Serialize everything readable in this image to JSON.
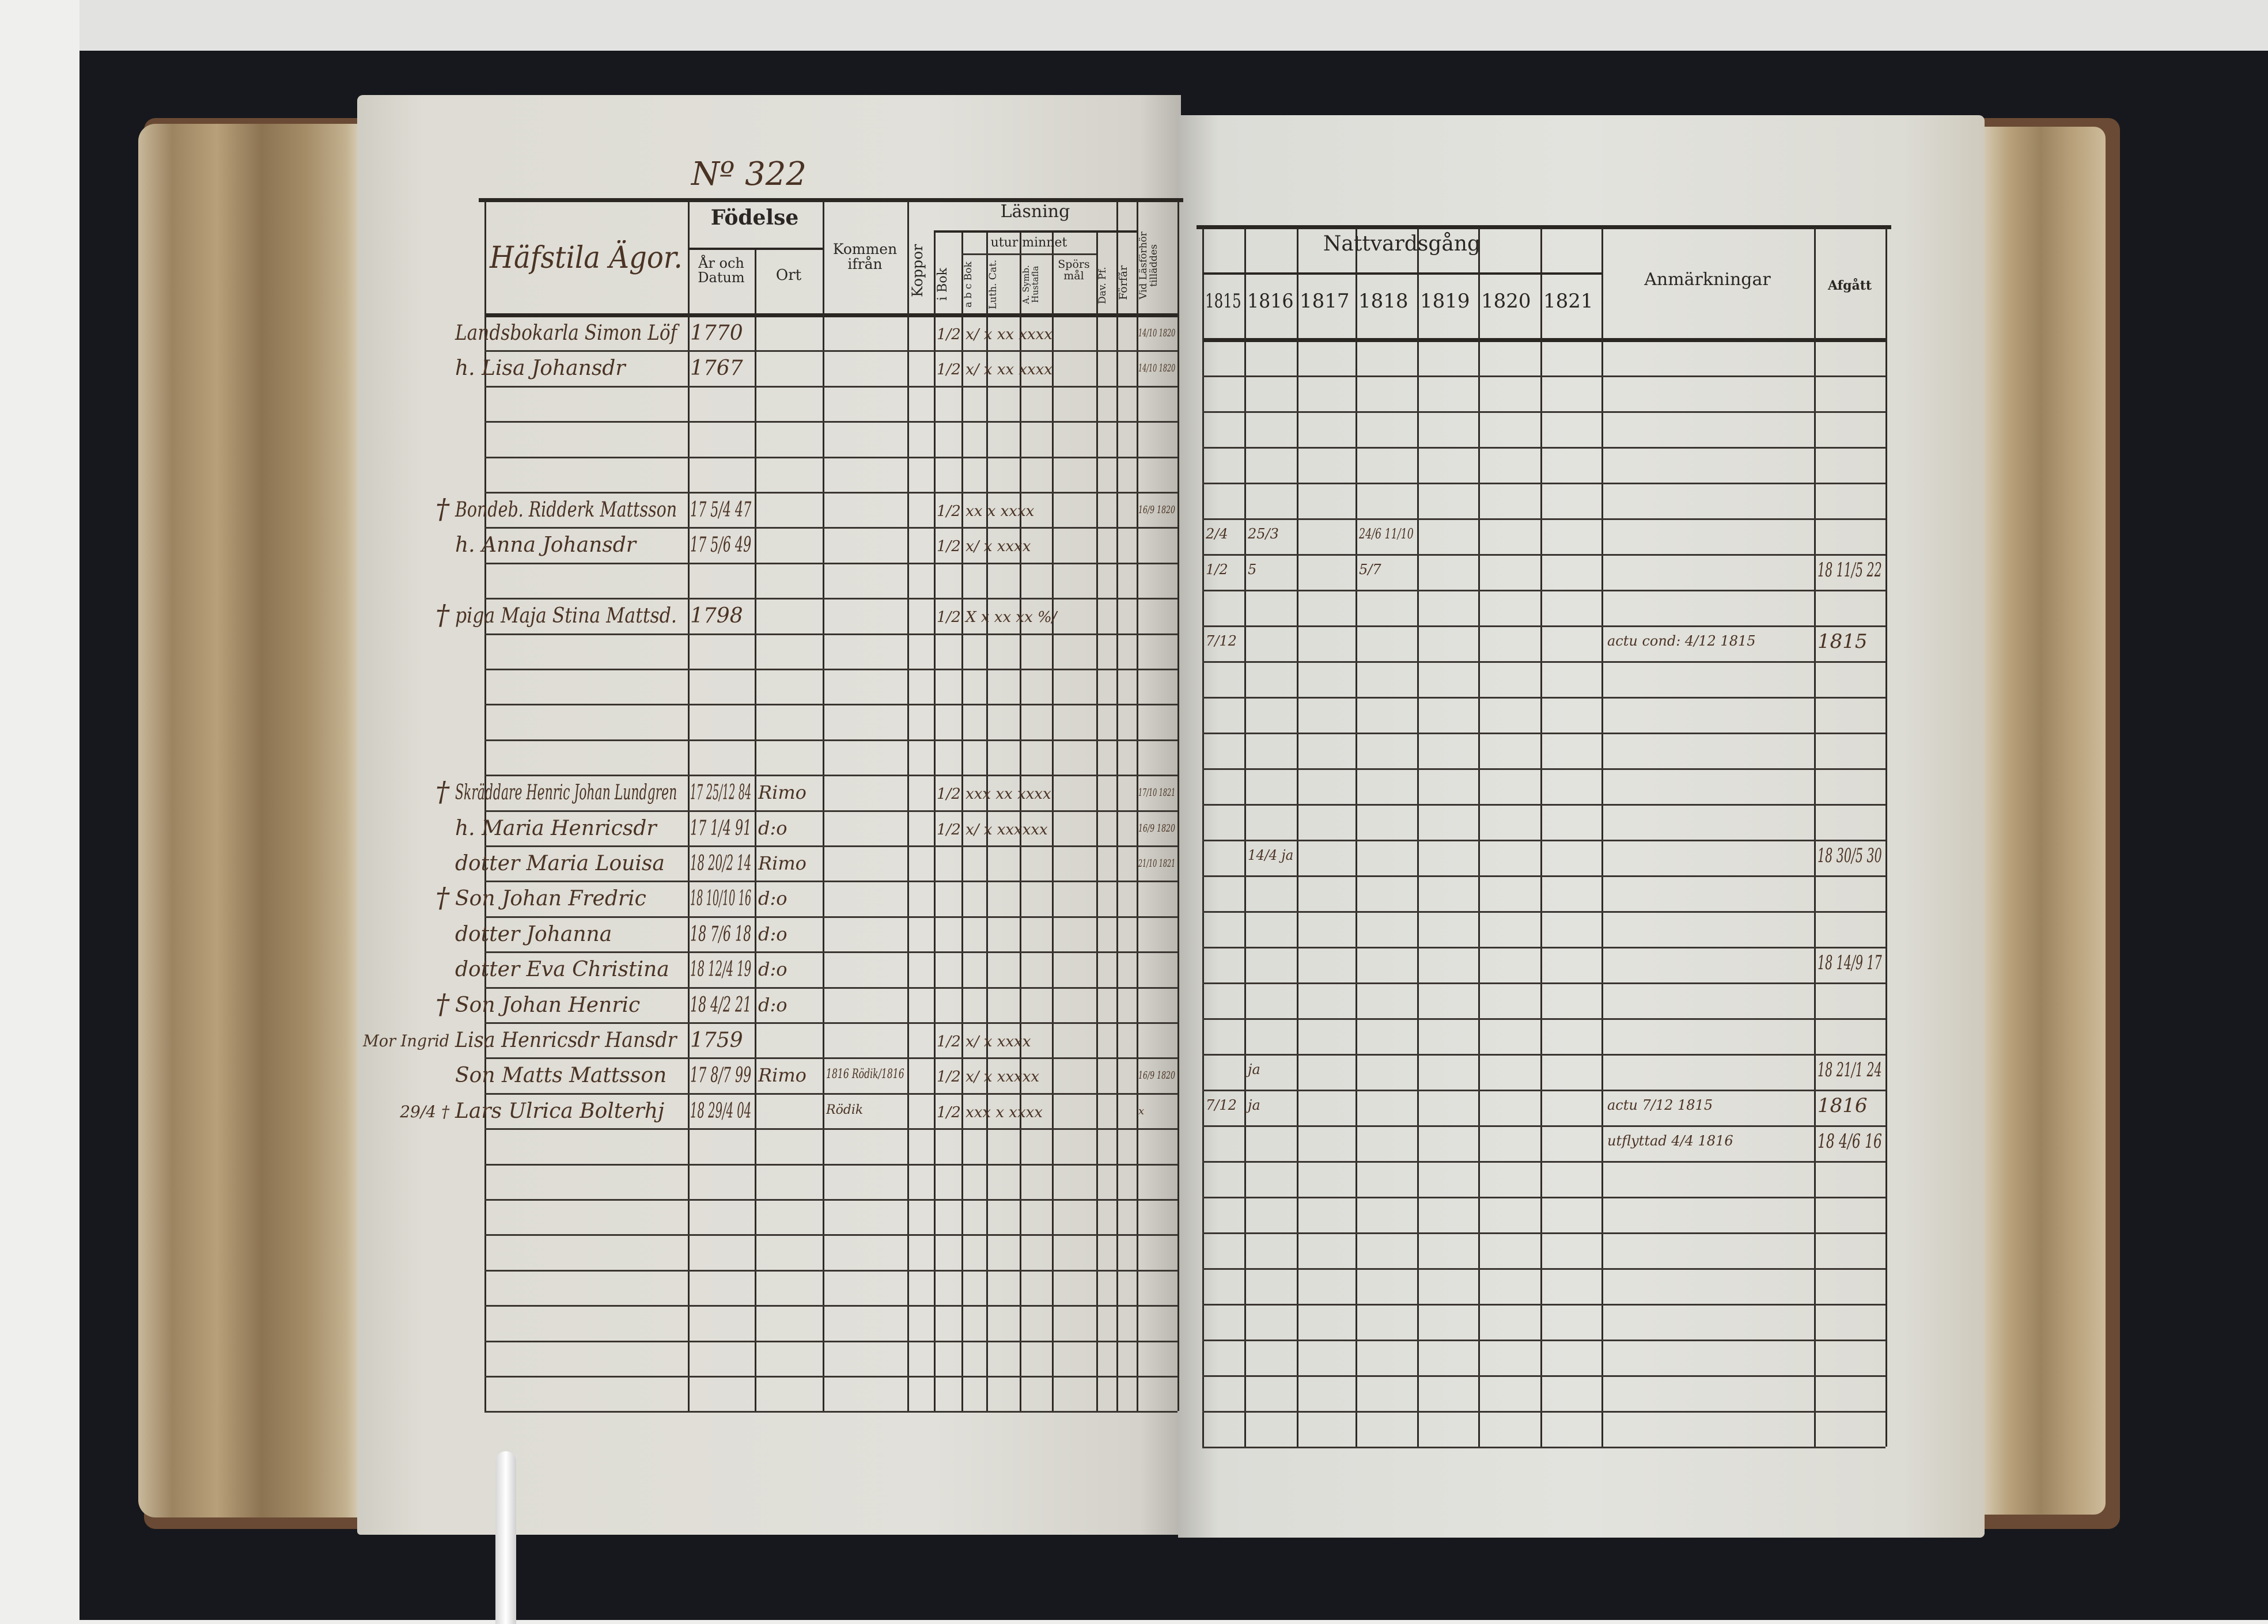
{
  "left_page": {
    "register_no": "Nº 322",
    "village": "Häfstila Ägor.",
    "headers": {
      "fodelse": "Födelse",
      "ar_och_datum": "År och Datum",
      "ort": "Ort",
      "kommen_ifran": "Kommen ifrån",
      "koppor": "Koppor",
      "lasning": "Läsning",
      "utur_minnet": "utur minnet",
      "i_bok": "i Bok",
      "abc_bok": "a b c Bok",
      "luth_cat": "Luth. Cat.",
      "a_symb": "A. Symb. Hustafla",
      "sporsmal": "Spörsmål",
      "dav_pf": "Dav. Pf.",
      "forfar": "Förfår",
      "vid_lasforhor": "Vid Läsförhör tilläddes"
    },
    "rows": [
      {
        "row": 0,
        "mark": "",
        "name": "Landsbokarla Simon Löf",
        "born": "1770",
        "ort": "",
        "reading": "1/2 x/ x  xx xxxx",
        "vid": "14/10 1820"
      },
      {
        "row": 1,
        "mark": "",
        "name": "h. Lisa Johansdr",
        "born": "1767",
        "ort": "",
        "reading": "1/2 x/ x  xx xxxx",
        "vid": "14/10 1820"
      },
      {
        "row": 5,
        "mark": "†",
        "name": "Bondeb. Ridderk Mattsson",
        "born": "17 5/4 47",
        "ort": "",
        "reading": "1/2 xx x  xxxx",
        "vid": "16/9 1820"
      },
      {
        "row": 6,
        "mark": "",
        "name": "h. Anna Johansdr",
        "born": "17 5/6 49",
        "ort": "",
        "reading": "1/2 x/  x xxxx",
        "vid": ""
      },
      {
        "row": 8,
        "mark": "†",
        "name": "piga Maja Stina Mattsd.",
        "born": "1798",
        "ort": "",
        "reading": "1/2 X x  xx xx %/",
        "vid": ""
      },
      {
        "row": 13,
        "mark": "†",
        "name": "Skräddare Henric Johan Lundgren",
        "born": "17 25/12 84",
        "ort": "Rimo",
        "reading": "1/2 xxx xx xxxx",
        "vid": "17/10 1821"
      },
      {
        "row": 14,
        "mark": "",
        "name": "h. Maria Henricsdr",
        "born": "17 1/4 91",
        "ort": "d:o",
        "reading": "1/2 x/ x  xxxxxx",
        "vid": "16/9 1820"
      },
      {
        "row": 15,
        "mark": "",
        "name": "dotter Maria Louisa",
        "born": "18 20/2 14",
        "ort": "Rimo",
        "reading": "",
        "vid": "21/10 1821"
      },
      {
        "row": 16,
        "mark": "†",
        "name": "Son Johan Fredric",
        "born": "18 10/10 16",
        "ort": "d:o",
        "reading": "",
        "vid": ""
      },
      {
        "row": 17,
        "mark": "",
        "name": "dotter Johanna",
        "born": "18 7/6 18",
        "ort": "d:o",
        "reading": "",
        "vid": ""
      },
      {
        "row": 18,
        "mark": "",
        "name": "dotter Eva Christina",
        "born": "18 12/4 19",
        "ort": "d:o",
        "reading": "",
        "vid": ""
      },
      {
        "row": 19,
        "mark": "†",
        "name": "Son Johan Henric",
        "born": "18 4/2 21",
        "ort": "d:o",
        "reading": "",
        "vid": ""
      },
      {
        "row": 20,
        "mark": "Mor Ingrid",
        "name": "Lisa Henricsdr Hansdr",
        "born": "1759",
        "ort": "",
        "reading": "1/2 x/ x  xxxx",
        "vid": ""
      },
      {
        "row": 21,
        "mark": "",
        "name": "Son Matts Mattsson",
        "born": "17 8/7 99",
        "ort": "Rimo",
        "reading": "1/2 x/ x  xxxxx",
        "vid": "16/9 1820"
      },
      {
        "row": 22,
        "mark": "29/4 †",
        "name": "Lars Ulrica Bolterhj",
        "born": "18 29/4 04",
        "ort": "",
        "reading": "1/2 xxx x xxxx",
        "vid": "x"
      }
    ],
    "kommen_notes": [
      {
        "row": 21,
        "text": "1816 Rödik/1816"
      },
      {
        "row": 22,
        "text": "Rödik"
      }
    ]
  },
  "right_page": {
    "headers": {
      "nattvardsgang": "Nattvardsgång",
      "years": [
        "1815",
        "1816",
        "1817",
        "1818",
        "1819",
        "1820",
        "1821"
      ],
      "anmarkningar": "Anmärkningar",
      "afgatt": "Afgått"
    },
    "rows": [
      {
        "row": 5,
        "nattvard": [
          "2/4",
          "25/3",
          "",
          "24/6 11/10",
          "",
          "",
          ""
        ],
        "anm": "",
        "afgatt": ""
      },
      {
        "row": 6,
        "nattvard": [
          "1/2",
          "5",
          "",
          "5/7",
          "",
          "",
          ""
        ],
        "anm": "",
        "afgatt": "18 11/5 22"
      },
      {
        "row": 8,
        "nattvard": [
          "7/12",
          "",
          "",
          "",
          "",
          "",
          ""
        ],
        "anm": "actu cond: 4/12 1815",
        "afgatt": "1815"
      },
      {
        "row": 14,
        "nattvard": [
          "",
          "14/4 ja",
          "",
          "",
          "",
          "",
          ""
        ],
        "anm": "",
        "afgatt": "18 30/5 30"
      },
      {
        "row": 17,
        "nattvard": [
          "",
          "",
          "",
          "",
          "",
          "",
          ""
        ],
        "anm": "",
        "afgatt": "18 14/9 17"
      },
      {
        "row": 20,
        "nattvard": [
          "",
          "ja",
          "",
          "",
          "",
          "",
          ""
        ],
        "anm": "",
        "afgatt": "18 21/1 24"
      },
      {
        "row": 21,
        "nattvard": [
          "7/12",
          "ja",
          "",
          "",
          "",
          "",
          ""
        ],
        "anm": "actu 7/12 1815",
        "afgatt": "1816"
      },
      {
        "row": 22,
        "nattvard": [
          "",
          "",
          "",
          "",
          "",
          "",
          ""
        ],
        "anm": "utflyttad 4/4 1816",
        "afgatt": "18 4/6 16"
      }
    ]
  },
  "colors": {
    "ink": "#4a3324",
    "print": "#2a2623",
    "paper": "#e1e0da",
    "backdrop": "#17181d"
  }
}
